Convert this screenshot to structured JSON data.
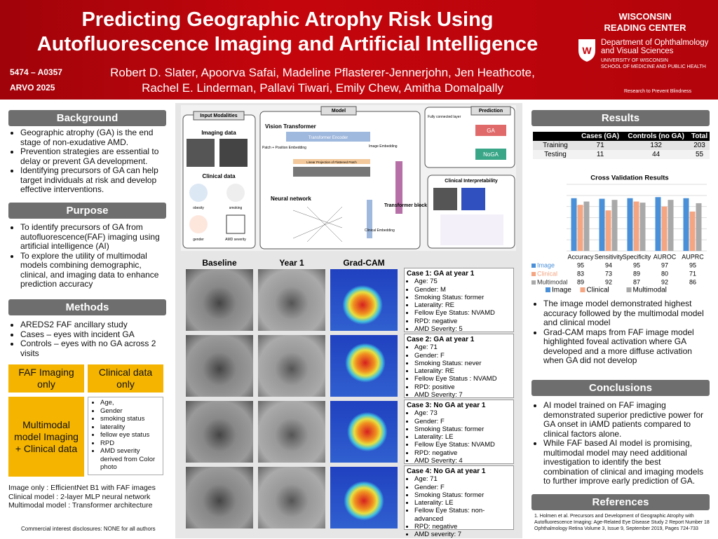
{
  "header": {
    "title_lines": [
      "Predicting Geographic Atrophy Risk Using",
      "Autofluorescence Imaging and Artificial Intelligence"
    ],
    "poster_id": "5474 – A0357",
    "conference": "ARVO 2025",
    "author_lines": [
      "Robert D. Slater, Apoorva Safai, Madeline Pflasterer-Jennerjohn, Jen Heathcote,",
      "Rachel E. Linderman, Pallavi Tiwari, Emily Chew, Amitha Domalpally"
    ],
    "center_lines": [
      "WISCONSIN",
      "READING CENTER"
    ],
    "dept_lines": [
      "Department of Ophthalmology",
      "and Visual Sciences"
    ],
    "univ_lines": [
      "UNIVERSITY OF WISCONSIN",
      "SCHOOL OF MEDICINE AND PUBLIC HEALTH"
    ],
    "rpb": "Research to Prevent Blindness"
  },
  "background": {
    "heading": "Background",
    "bullets": [
      "Geographic atrophy (GA) is the end stage of non-exudative AMD.",
      " Prevention strategies are essential to delay or prevent GA development.",
      " Identifying precursors of GA can help target individuals at risk and develop effective interventions."
    ]
  },
  "purpose": {
    "heading": "Purpose",
    "bullets": [
      "To identify precursors of GA from autofluorescence(FAF) imaging using artificial intelligence (AI)",
      "To explore the utility of multimodal models combining demographic, clinical, and imaging data to enhance prediction accuracy"
    ]
  },
  "methods": {
    "heading": "Methods",
    "bullets": [
      "AREDS2 FAF ancillary study",
      "Cases – eyes with incident GA",
      "Controls – eyes with no GA across 2 visits"
    ],
    "box_imaging": "FAF Imaging only",
    "box_clinical": "Clinical data only",
    "box_multimodal": "Multimodal model Imaging + Clinical data",
    "clinical_features": [
      "Age,",
      "Gender",
      "smoking status",
      "laterality",
      "fellow eye status",
      "RPD",
      "AMD severity derived from Color photo"
    ],
    "models": [
      "Image only : EfficientNet B1 with FAF images",
      "Clinical model : 2-layer MLP neural network",
      "Multimodal model : Transformer architecture"
    ],
    "disclosure": "Commercial interest disclosures:  NONE  for all authors"
  },
  "diagram": {
    "input_title": "Input Modalities",
    "imaging": "Imaging data",
    "clinical": "Clinical data",
    "icons": [
      "obesity",
      "smoking",
      "gender",
      "AMD severity"
    ],
    "model_title": "Model",
    "vit": "Vision Transformer",
    "encoder": "Transformer Encoder",
    "patch": "Patch + Position Embedding",
    "linear": "Linear Projection of Flattened Patch",
    "image_embedding": "Image Embedding",
    "nn": "Neural network",
    "clinical_embedding": "Clinical Embedding",
    "block": "Transformer block",
    "prediction_title": "Prediction",
    "fc": "Fully connected layer",
    "ga": "GA",
    "noga": "NoGA",
    "interp": "Clinical Interpretability"
  },
  "image_columns": [
    "Baseline",
    "Year 1",
    "Grad-CAM"
  ],
  "cases": [
    {
      "title": "Case 1: GA at year 1",
      "items": [
        "Age: 75",
        "Gender: M",
        "Smoking Status: former",
        "Laterality: RE",
        "Fellow Eye Status: NVAMD",
        "RPD: negative",
        "AMD Severity: 5"
      ]
    },
    {
      "title": "Case 2: GA at year 1",
      "items": [
        "Age: 71",
        "Gender: F",
        "Smoking Status: never",
        "Laterality: RE",
        "Fellow Eye Status : NVAMD",
        "RPD: positive",
        "AMD Severity: 7"
      ]
    },
    {
      "title": "Case 3: No GA at year 1",
      "items": [
        "Age: 73",
        "Gender: F",
        "Smoking Status: former",
        "Laterality: LE",
        "Fellow Eye Status: NVAMD",
        "RPD: negative",
        "AMD Severity: 4"
      ]
    },
    {
      "title": "Case 4: No GA at year 1",
      "items": [
        "Age: 71",
        "Gender: F",
        "Smoking Status: former",
        "Laterality: LE",
        "Fellow Eye Status: non-advanced",
        "RPD: negative",
        "AMD severity: 7"
      ]
    }
  ],
  "results": {
    "heading": "Results",
    "table": {
      "header": [
        "Cases (GA)",
        "Controls (no GA)",
        "Total"
      ],
      "rows": [
        {
          "label": "Training",
          "cells": [
            71,
            132,
            203
          ]
        },
        {
          "label": "Testing",
          "cells": [
            11,
            44,
            55
          ]
        }
      ]
    },
    "bullets": [
      "The image model demonstrated highest accuracy followed by the multimodal model and clinical model",
      "Grad-CAM maps from FAF image model highlighted foveal activation where GA developed and a more diffuse activation when GA did not develop"
    ]
  },
  "conclusions": {
    "heading": "Conclusions",
    "bullets": [
      "AI model trained on FAF imaging demonstrated superior predictive power for GA onset in iAMD patients compared to clinical factors alone.",
      "While FAF based AI model is promising, multimodal model may need additional investigation to identify the best combination of clinical and imaging models to further improve early prediction of GA."
    ]
  },
  "references": {
    "heading": "References",
    "text": "1. Holmen et al. Precursors and Development of Geographic Atrophy with Autofluorescence Imaging: Age-Related Eye Disease Study 2 Report Number 18 Ophthalmology Retina Volume 3, Issue 9, September 2019, Pages 724-733"
  },
  "chart_data": {
    "type": "bar",
    "title": "Cross Validation Results",
    "categories": [
      "Accuracy",
      "Sensitivity",
      "Specificity",
      "AUROC",
      "AUPRC"
    ],
    "series": [
      {
        "name": "Image",
        "color": "#4a90d9",
        "values": [
          95,
          94,
          95,
          97,
          95
        ]
      },
      {
        "name": "Clinical",
        "color": "#f4a582",
        "values": [
          83,
          73,
          89,
          80,
          71
        ]
      },
      {
        "name": "Multimodal",
        "color": "#a9a9a9",
        "values": [
          89,
          92,
          87,
          92,
          86
        ]
      }
    ],
    "ylim": [
      0,
      120
    ],
    "yticks": [
      0,
      20,
      40,
      60,
      80,
      100,
      120
    ],
    "grid": true
  }
}
